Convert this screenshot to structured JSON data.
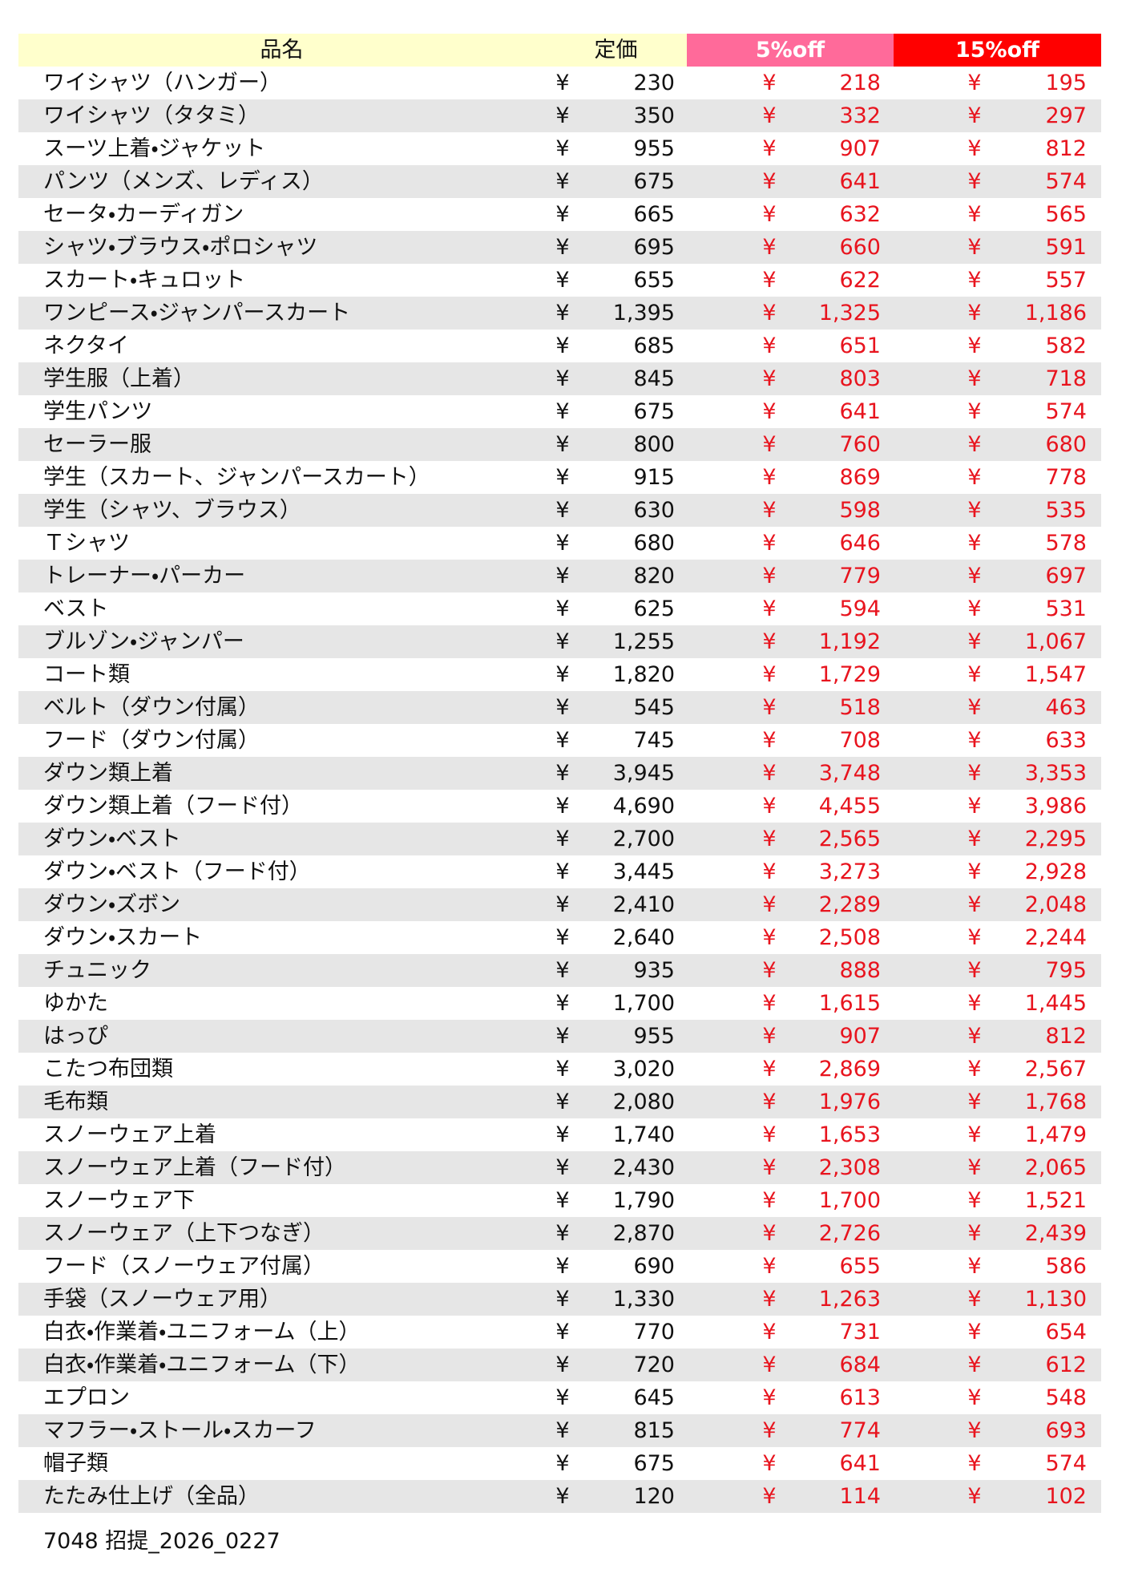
{
  "header": {
    "columns": [
      "品名",
      "定価",
      "5%off",
      "15%off"
    ]
  },
  "currency": "¥",
  "table": {
    "rows": [
      [
        "ワイシャツ（ハンガー）",
        "230",
        "218",
        "195"
      ],
      [
        "ワイシャツ（タタミ）",
        "350",
        "332",
        "297"
      ],
      [
        "スーツ上着・ジャケット",
        "955",
        "907",
        "812"
      ],
      [
        "パンツ（メンズ、レディス）",
        "675",
        "641",
        "574"
      ],
      [
        "セータ・カーディガン",
        "665",
        "632",
        "565"
      ],
      [
        "シャツ・ブラウス・ポロシャツ",
        "695",
        "660",
        "591"
      ],
      [
        "スカート・キュロット",
        "655",
        "622",
        "557"
      ],
      [
        "ワンピース・ジャンパースカート",
        "1,395",
        "1,325",
        "1,186"
      ],
      [
        "ネクタイ",
        "685",
        "651",
        "582"
      ],
      [
        "学生服（上着）",
        "845",
        "803",
        "718"
      ],
      [
        "学生パンツ",
        "675",
        "641",
        "574"
      ],
      [
        "セーラー服",
        "800",
        "760",
        "680"
      ],
      [
        "学生（スカート、ジャンパースカート）",
        "915",
        "869",
        "778"
      ],
      [
        "学生（シャツ、ブラウス）",
        "630",
        "598",
        "535"
      ],
      [
        "Ｔシャツ",
        "680",
        "646",
        "578"
      ],
      [
        "トレーナー・パーカー",
        "820",
        "779",
        "697"
      ],
      [
        "ベスト",
        "625",
        "594",
        "531"
      ],
      [
        "ブルゾン・ジャンパー",
        "1,255",
        "1,192",
        "1,067"
      ],
      [
        "コート類",
        "1,820",
        "1,729",
        "1,547"
      ],
      [
        "ベルト（ダウン付属）",
        "545",
        "518",
        "463"
      ],
      [
        "フード（ダウン付属）",
        "745",
        "708",
        "633"
      ],
      [
        "ダウン類上着",
        "3,945",
        "3,748",
        "3,353"
      ],
      [
        "ダウン類上着（フード付）",
        "4,690",
        "4,455",
        "3,986"
      ],
      [
        "ダウン・ベスト",
        "2,700",
        "2,565",
        "2,295"
      ],
      [
        "ダウン・ベスト（フード付）",
        "3,445",
        "3,273",
        "2,928"
      ],
      [
        "ダウン・ズボン",
        "2,410",
        "2,289",
        "2,048"
      ],
      [
        "ダウン・スカート",
        "2,640",
        "2,508",
        "2,244"
      ],
      [
        "チュニック",
        "935",
        "888",
        "795"
      ],
      [
        "ゆかた",
        "1,700",
        "1,615",
        "1,445"
      ],
      [
        "はっぴ",
        "955",
        "907",
        "812"
      ],
      [
        "こたつ布団類",
        "3,020",
        "2,869",
        "2,567"
      ],
      [
        "毛布類",
        "2,080",
        "1,976",
        "1,768"
      ],
      [
        "スノーウェア上着",
        "1,740",
        "1,653",
        "1,479"
      ],
      [
        "スノーウェア上着（フード付）",
        "2,430",
        "2,308",
        "2,065"
      ],
      [
        "スノーウェア下",
        "1,790",
        "1,700",
        "1,521"
      ],
      [
        "スノーウェア（上下つなぎ）",
        "2,870",
        "2,726",
        "2,439"
      ],
      [
        "フード（スノーウェア付属）",
        "690",
        "655",
        "586"
      ],
      [
        "手袋（スノーウェア用）",
        "1,330",
        "1,263",
        "1,130"
      ],
      [
        "白衣・作業着・ユニフォーム（上）",
        "770",
        "731",
        "654"
      ],
      [
        "白衣・作業着・ユニフォーム（下）",
        "720",
        "684",
        "612"
      ],
      [
        "エプロン",
        "645",
        "613",
        "548"
      ],
      [
        "マフラー・ストール・スカーフ",
        "815",
        "774",
        "693"
      ],
      [
        "帽子類",
        "675",
        "641",
        "574"
      ],
      [
        "たたみ仕上げ（全品）",
        "120",
        "114",
        "102"
      ]
    ]
  },
  "footer": "7048 招提_2026_0227"
}
